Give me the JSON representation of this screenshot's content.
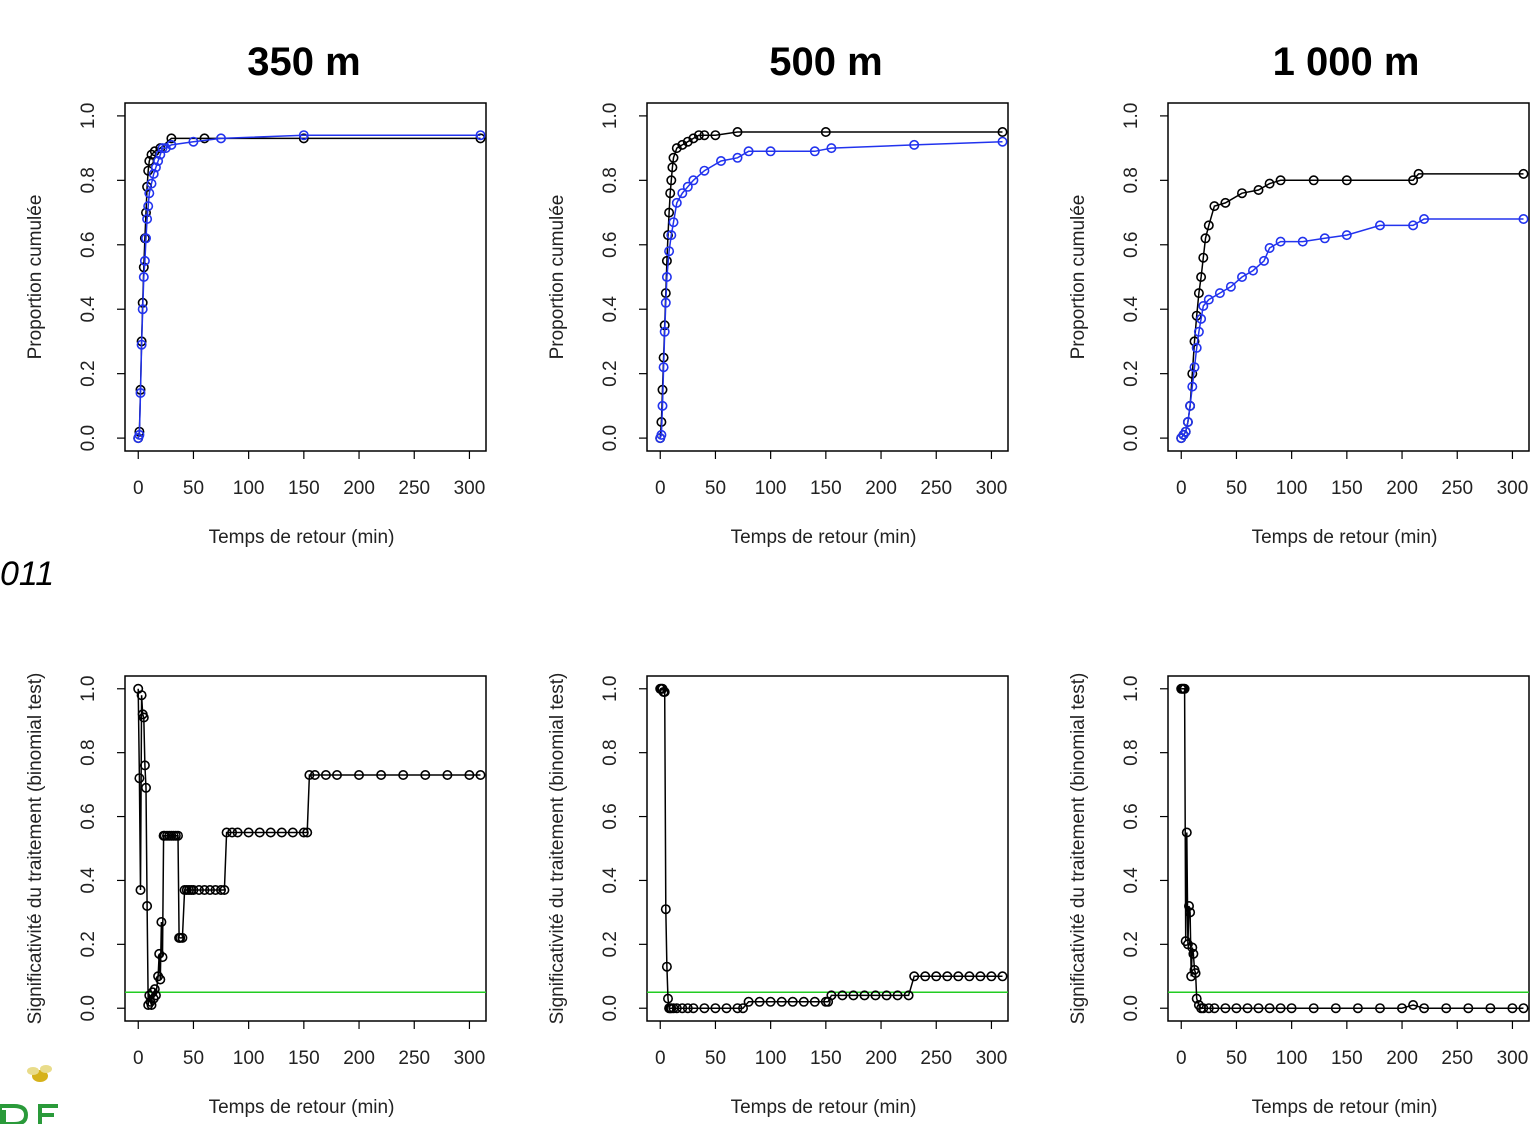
{
  "headers": [
    "350 m",
    "500 m",
    "1 000 m"
  ],
  "year_fragment": "011",
  "colors": {
    "control": "#000000",
    "treatment": "#2233ee",
    "threshold": "#22cc22"
  },
  "chart_data": [
    {
      "id": "c350_top",
      "type": "scatter",
      "xlabel": "Temps de retour (min)",
      "ylabel": "Proportion cumulée",
      "xlim": [
        -12,
        315
      ],
      "ylim": [
        -0.04,
        1.04
      ],
      "xticks": [
        0,
        50,
        100,
        150,
        200,
        250,
        300
      ],
      "yticks": [
        0.0,
        0.2,
        0.4,
        0.6,
        0.8,
        1.0
      ],
      "series": [
        {
          "color": "black",
          "x": [
            0,
            1,
            2,
            3,
            4,
            5,
            6,
            7,
            8,
            9,
            10,
            12,
            15,
            20,
            30,
            60,
            150,
            310
          ],
          "y": [
            0,
            0.02,
            0.15,
            0.3,
            0.42,
            0.53,
            0.62,
            0.7,
            0.78,
            0.83,
            0.86,
            0.88,
            0.89,
            0.9,
            0.93,
            0.93,
            0.93,
            0.93
          ]
        },
        {
          "color": "blue",
          "x": [
            0,
            1,
            2,
            3,
            4,
            5,
            6,
            7,
            8,
            9,
            10,
            12,
            14,
            16,
            18,
            20,
            22,
            25,
            30,
            50,
            75,
            150,
            310
          ],
          "y": [
            0,
            0.01,
            0.14,
            0.29,
            0.4,
            0.5,
            0.55,
            0.62,
            0.68,
            0.72,
            0.76,
            0.79,
            0.82,
            0.84,
            0.86,
            0.88,
            0.9,
            0.9,
            0.91,
            0.92,
            0.93,
            0.94,
            0.94
          ]
        }
      ]
    },
    {
      "id": "c500_top",
      "type": "scatter",
      "xlabel": "Temps de retour (min)",
      "ylabel": "Proportion cumulée",
      "xlim": [
        -12,
        315
      ],
      "ylim": [
        -0.04,
        1.04
      ],
      "xticks": [
        0,
        50,
        100,
        150,
        200,
        250,
        300
      ],
      "yticks": [
        0.0,
        0.2,
        0.4,
        0.6,
        0.8,
        1.0
      ],
      "series": [
        {
          "color": "black",
          "x": [
            0,
            1,
            2,
            3,
            4,
            5,
            6,
            7,
            8,
            9,
            10,
            11,
            12,
            15,
            20,
            25,
            30,
            35,
            40,
            50,
            70,
            150,
            310
          ],
          "y": [
            0,
            0.05,
            0.15,
            0.25,
            0.35,
            0.45,
            0.55,
            0.63,
            0.7,
            0.76,
            0.8,
            0.84,
            0.87,
            0.9,
            0.91,
            0.92,
            0.93,
            0.94,
            0.94,
            0.94,
            0.95,
            0.95,
            0.95
          ]
        },
        {
          "color": "blue",
          "x": [
            0,
            1,
            2,
            3,
            4,
            5,
            6,
            8,
            10,
            12,
            15,
            20,
            25,
            30,
            40,
            55,
            70,
            80,
            100,
            140,
            155,
            230,
            310
          ],
          "y": [
            0,
            0.01,
            0.1,
            0.22,
            0.33,
            0.42,
            0.5,
            0.58,
            0.63,
            0.67,
            0.73,
            0.76,
            0.78,
            0.8,
            0.83,
            0.86,
            0.87,
            0.89,
            0.89,
            0.89,
            0.9,
            0.91,
            0.92
          ]
        }
      ]
    },
    {
      "id": "c1000_top",
      "type": "scatter",
      "xlabel": "Temps de retour (min)",
      "ylabel": "Proportion cumulée",
      "xlim": [
        -12,
        315
      ],
      "ylim": [
        -0.04,
        1.04
      ],
      "xticks": [
        0,
        50,
        100,
        150,
        200,
        250,
        300
      ],
      "yticks": [
        0.0,
        0.2,
        0.4,
        0.6,
        0.8,
        1.0
      ],
      "series": [
        {
          "color": "black",
          "x": [
            0,
            2,
            4,
            6,
            8,
            10,
            12,
            14,
            16,
            18,
            20,
            22,
            25,
            30,
            40,
            55,
            70,
            80,
            90,
            120,
            150,
            210,
            215,
            310
          ],
          "y": [
            0,
            0.01,
            0.02,
            0.05,
            0.1,
            0.2,
            0.3,
            0.38,
            0.45,
            0.5,
            0.56,
            0.62,
            0.66,
            0.72,
            0.73,
            0.76,
            0.77,
            0.79,
            0.8,
            0.8,
            0.8,
            0.8,
            0.82,
            0.82
          ]
        },
        {
          "color": "blue",
          "x": [
            0,
            2,
            4,
            6,
            8,
            10,
            12,
            14,
            16,
            18,
            20,
            25,
            35,
            45,
            55,
            65,
            75,
            80,
            90,
            110,
            130,
            150,
            180,
            210,
            220,
            310
          ],
          "y": [
            0,
            0.01,
            0.02,
            0.05,
            0.1,
            0.16,
            0.22,
            0.28,
            0.33,
            0.37,
            0.41,
            0.43,
            0.45,
            0.47,
            0.5,
            0.52,
            0.55,
            0.59,
            0.61,
            0.61,
            0.62,
            0.63,
            0.66,
            0.66,
            0.68,
            0.68
          ]
        }
      ]
    },
    {
      "id": "c350_bot",
      "type": "scatter",
      "xlabel": "Temps de retour (min)",
      "ylabel": "Significativité du traitement (binomial test)",
      "xlim": [
        -12,
        315
      ],
      "ylim": [
        -0.04,
        1.04
      ],
      "xticks": [
        0,
        50,
        100,
        150,
        200,
        250,
        300
      ],
      "yticks": [
        0.0,
        0.2,
        0.4,
        0.6,
        0.8,
        1.0
      ],
      "threshold": 0.05,
      "series": [
        {
          "color": "black",
          "x": [
            0,
            1,
            2,
            3,
            4,
            5,
            6,
            7,
            8,
            9,
            10,
            11,
            12,
            13,
            14,
            15,
            16,
            18,
            19,
            20,
            21,
            22,
            23,
            24,
            26,
            28,
            30,
            32,
            34,
            36,
            37,
            38,
            40,
            42,
            44,
            46,
            48,
            50,
            55,
            60,
            65,
            70,
            75,
            78,
            80,
            85,
            90,
            100,
            110,
            120,
            130,
            140,
            150,
            153,
            155,
            160,
            170,
            180,
            200,
            220,
            240,
            260,
            280,
            300,
            310
          ],
          "y": [
            1.0,
            0.72,
            0.37,
            0.98,
            0.92,
            0.91,
            0.76,
            0.69,
            0.32,
            0.01,
            0.04,
            0.02,
            0.01,
            0.05,
            0.03,
            0.06,
            0.04,
            0.1,
            0.17,
            0.09,
            0.27,
            0.16,
            0.54,
            0.54,
            0.54,
            0.54,
            0.54,
            0.54,
            0.54,
            0.54,
            0.22,
            0.22,
            0.22,
            0.37,
            0.37,
            0.37,
            0.37,
            0.37,
            0.37,
            0.37,
            0.37,
            0.37,
            0.37,
            0.37,
            0.55,
            0.55,
            0.55,
            0.55,
            0.55,
            0.55,
            0.55,
            0.55,
            0.55,
            0.55,
            0.73,
            0.73,
            0.73,
            0.73,
            0.73,
            0.73,
            0.73,
            0.73,
            0.73,
            0.73,
            0.73
          ]
        }
      ]
    },
    {
      "id": "c500_bot",
      "type": "scatter",
      "xlabel": "Temps de retour (min)",
      "ylabel": "Significativité du traitement (binomial test)",
      "xlim": [
        -12,
        315
      ],
      "ylim": [
        -0.04,
        1.04
      ],
      "xticks": [
        0,
        50,
        100,
        150,
        200,
        250,
        300
      ],
      "yticks": [
        0.0,
        0.2,
        0.4,
        0.6,
        0.8,
        1.0
      ],
      "threshold": 0.05,
      "series": [
        {
          "color": "black",
          "x": [
            0,
            1,
            2,
            3,
            4,
            5,
            6,
            7,
            8,
            9,
            10,
            12,
            15,
            20,
            25,
            30,
            40,
            50,
            60,
            70,
            75,
            80,
            90,
            100,
            110,
            120,
            130,
            140,
            150,
            152,
            155,
            165,
            175,
            185,
            195,
            205,
            215,
            225,
            230,
            240,
            250,
            260,
            270,
            280,
            290,
            300,
            310
          ],
          "y": [
            1.0,
            1.0,
            1.0,
            0.99,
            0.99,
            0.31,
            0.13,
            0.03,
            0.0,
            0.0,
            0.0,
            0.0,
            0.0,
            0.0,
            0.0,
            0.0,
            0.0,
            0.0,
            0.0,
            0.0,
            0.0,
            0.02,
            0.02,
            0.02,
            0.02,
            0.02,
            0.02,
            0.02,
            0.02,
            0.02,
            0.04,
            0.04,
            0.04,
            0.04,
            0.04,
            0.04,
            0.04,
            0.04,
            0.1,
            0.1,
            0.1,
            0.1,
            0.1,
            0.1,
            0.1,
            0.1,
            0.1
          ]
        }
      ]
    },
    {
      "id": "c1000_bot",
      "type": "scatter",
      "xlabel": "Temps de retour (min)",
      "ylabel": "Significativité du traitement (binomial test)",
      "xlim": [
        -12,
        315
      ],
      "ylim": [
        -0.04,
        1.04
      ],
      "xticks": [
        0,
        50,
        100,
        150,
        200,
        250,
        300
      ],
      "yticks": [
        0.0,
        0.2,
        0.4,
        0.6,
        0.8,
        1.0
      ],
      "threshold": 0.05,
      "series": [
        {
          "color": "black",
          "x": [
            0,
            1,
            2,
            3,
            4,
            5,
            6,
            7,
            8,
            9,
            10,
            11,
            12,
            13,
            14,
            16,
            18,
            20,
            25,
            30,
            40,
            50,
            60,
            70,
            80,
            90,
            100,
            120,
            140,
            160,
            180,
            200,
            210,
            220,
            240,
            260,
            280,
            300,
            310
          ],
          "y": [
            1.0,
            1.0,
            1.0,
            1.0,
            0.21,
            0.55,
            0.2,
            0.32,
            0.3,
            0.1,
            0.19,
            0.17,
            0.12,
            0.11,
            0.03,
            0.01,
            0.0,
            0.0,
            0.0,
            0.0,
            0.0,
            0.0,
            0.0,
            0.0,
            0.0,
            0.0,
            0.0,
            0.0,
            0.0,
            0.0,
            0.0,
            0.0,
            0.01,
            0.0,
            0.0,
            0.0,
            0.0,
            0.0,
            0.0
          ]
        }
      ]
    }
  ]
}
